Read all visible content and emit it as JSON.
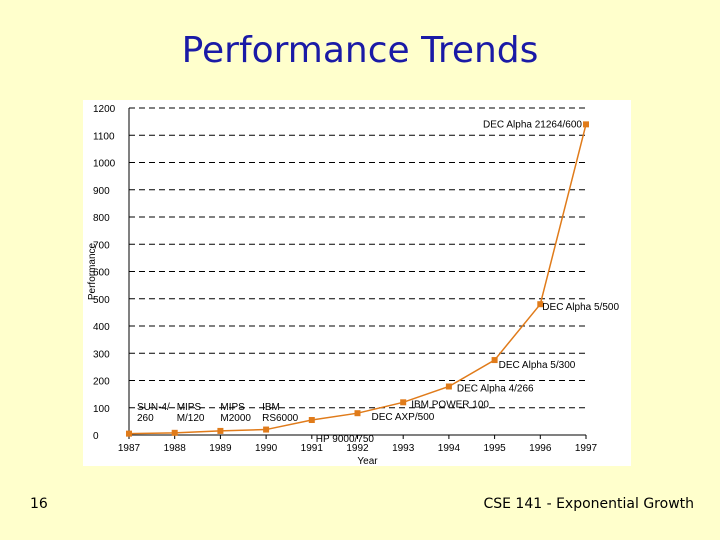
{
  "slide": {
    "title": "Performance Trends",
    "number": "16",
    "footer": "CSE 141 - Exponential Growth"
  },
  "chart_data": {
    "type": "line",
    "title": "",
    "xlabel": "Year",
    "ylabel": "Performance",
    "categories": [
      "1987",
      "1988",
      "1989",
      "1990",
      "1991",
      "1992",
      "1993",
      "1994",
      "1995",
      "1996",
      "1997"
    ],
    "ylim": [
      0,
      1200
    ],
    "yticks": [
      0,
      100,
      200,
      300,
      400,
      500,
      600,
      700,
      800,
      900,
      1000,
      1100,
      1200
    ],
    "grid": "horizontal dashed",
    "series": [
      {
        "values": [
          5,
          8,
          15,
          20,
          55,
          80,
          120,
          178,
          275,
          480,
          1140
        ],
        "color": "#e07b1a"
      }
    ],
    "annotations": [
      {
        "lines": [
          "SUN-4/",
          "260"
        ],
        "x": "1987"
      },
      {
        "lines": [
          "MIPS",
          "M/120"
        ],
        "x": "1988"
      },
      {
        "lines": [
          "MIPS",
          "M2000"
        ],
        "x": "1989"
      },
      {
        "lines": [
          "IBM",
          "RS6000"
        ],
        "x": "1990"
      },
      {
        "lines": [
          "HP 9000/750"
        ],
        "x": "1991"
      },
      {
        "lines": [
          "DEC AXP/500"
        ],
        "x": "1992"
      },
      {
        "lines": [
          "IBM POWER 100"
        ],
        "x": "1993"
      },
      {
        "lines": [
          "DEC Alpha 4/266"
        ],
        "x": "1994"
      },
      {
        "lines": [
          "DEC Alpha 5/300"
        ],
        "x": "1995"
      },
      {
        "lines": [
          "DEC Alpha 5/500"
        ],
        "x": "1996"
      },
      {
        "lines": [
          "DEC Alpha 21264/600"
        ],
        "x": "1997"
      }
    ]
  }
}
